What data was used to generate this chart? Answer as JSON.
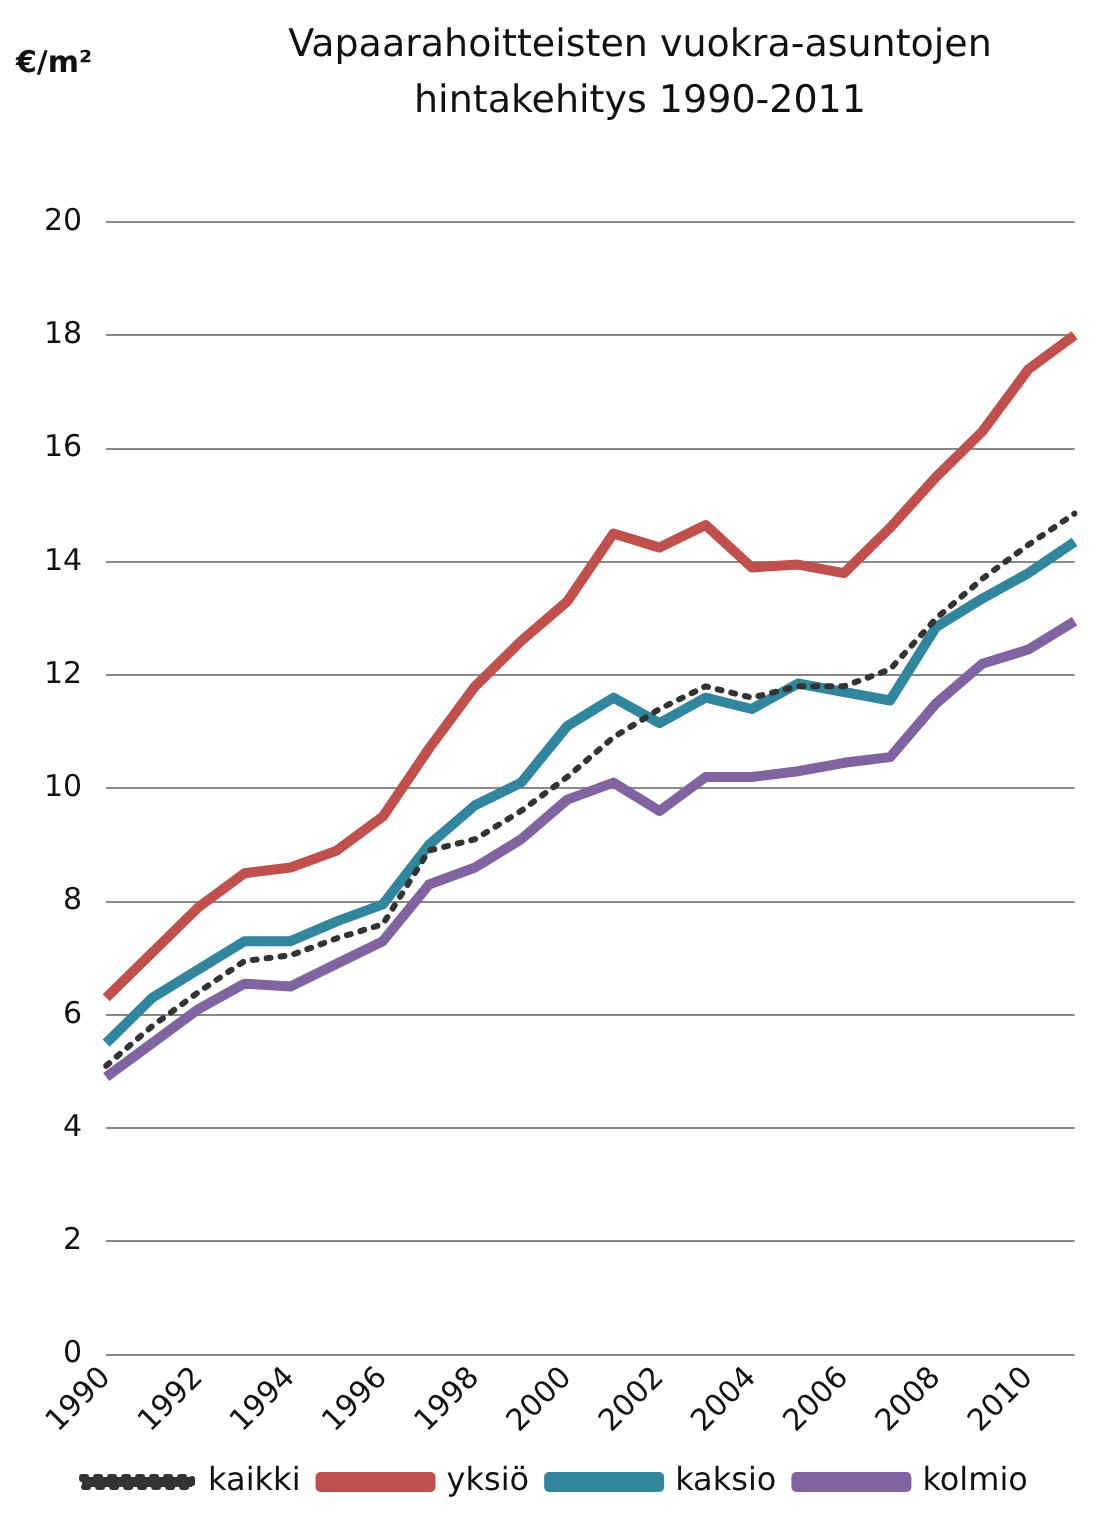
{
  "chart_data": {
    "type": "line",
    "title": "Vapaarahoitteisten vuokra-asuntojen hintakehitys 1990-2011",
    "ylabel": "€/m²",
    "categories": [
      "1990",
      null,
      "1992",
      null,
      "1994",
      null,
      "1996",
      null,
      "1998",
      null,
      "2000",
      null,
      "2002",
      null,
      "2004",
      null,
      "2006",
      null,
      "2008",
      null,
      "2010",
      null
    ],
    "series": [
      {
        "name": "kaikki",
        "color": "#333333",
        "line_style": "dotted",
        "values": [
          5.1,
          5.8,
          6.4,
          6.95,
          7.05,
          7.35,
          7.6,
          8.9,
          9.1,
          9.6,
          10.2,
          10.9,
          11.4,
          11.8,
          11.6,
          11.8,
          11.8,
          12.1,
          13.0,
          13.7,
          14.3,
          14.85
        ]
      },
      {
        "name": "yksiö",
        "color": "#c0504d",
        "line_style": "solid",
        "values": [
          6.3,
          7.1,
          7.9,
          8.5,
          8.6,
          8.9,
          9.5,
          10.7,
          11.8,
          12.6,
          13.3,
          14.5,
          14.25,
          14.65,
          13.9,
          13.95,
          13.8,
          14.6,
          15.5,
          16.3,
          17.4,
          18.0
        ]
      },
      {
        "name": "kaksio",
        "color": "#31859c",
        "line_style": "solid",
        "values": [
          5.5,
          6.3,
          6.8,
          7.3,
          7.3,
          7.65,
          7.95,
          9.0,
          9.7,
          10.1,
          11.1,
          11.6,
          11.15,
          11.6,
          11.4,
          11.85,
          11.7,
          11.55,
          12.85,
          13.35,
          13.8,
          14.35
        ]
      },
      {
        "name": "kolmio",
        "color": "#8064a2",
        "line_style": "solid",
        "values": [
          4.9,
          5.5,
          6.1,
          6.55,
          6.5,
          6.9,
          7.3,
          8.3,
          8.6,
          9.1,
          9.8,
          10.1,
          9.6,
          10.2,
          10.2,
          10.3,
          10.45,
          10.55,
          11.5,
          12.2,
          12.45,
          12.95
        ]
      }
    ],
    "ylim": [
      0,
      20
    ],
    "yticks": [
      0,
      2,
      4,
      6,
      8,
      10,
      12,
      14,
      16,
      18,
      20
    ],
    "grid": "y",
    "legend": "bottom",
    "marker": "none"
  }
}
